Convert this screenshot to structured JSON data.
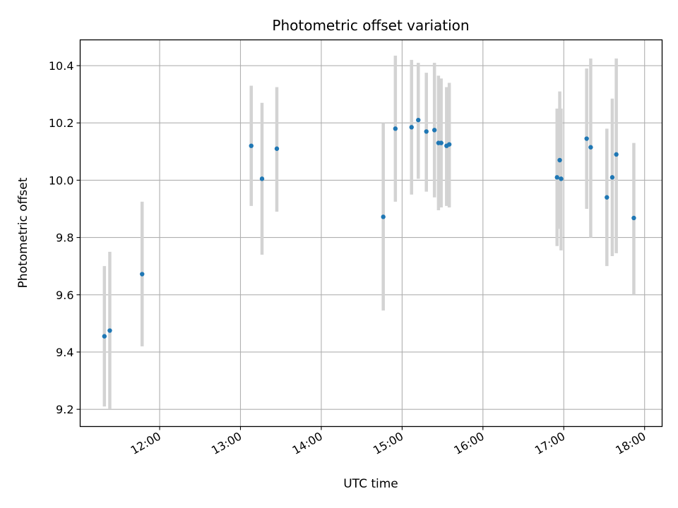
{
  "chart_data": {
    "type": "scatter",
    "title": "Photometric offset variation",
    "xlabel": "UTC time",
    "ylabel": "Photometric offset",
    "x_ticks": [
      "12:00",
      "13:00",
      "14:00",
      "15:00",
      "16:00",
      "17:00",
      "18:00"
    ],
    "y_ticks": [
      "9.2",
      "9.4",
      "9.6",
      "9.8",
      "10.0",
      "10.2",
      "10.4"
    ],
    "xlim": [
      "11:01",
      "18:13"
    ],
    "ylim": [
      9.14,
      10.49
    ],
    "grid": true,
    "colors": {
      "points": "#1f77b4",
      "errorbars": "#d3d3d3",
      "grid": "#b0b0b0"
    },
    "points": [
      {
        "time": "11:19",
        "offset": 9.455,
        "err_low": 9.21,
        "err_high": 9.7
      },
      {
        "time": "11:23",
        "offset": 9.475,
        "err_low": 9.2,
        "err_high": 9.75
      },
      {
        "time": "11:47",
        "offset": 9.672,
        "err_low": 9.42,
        "err_high": 9.925
      },
      {
        "time": "13:08",
        "offset": 10.12,
        "err_low": 9.91,
        "err_high": 10.33
      },
      {
        "time": "13:16",
        "offset": 10.005,
        "err_low": 9.74,
        "err_high": 10.27
      },
      {
        "time": "13:27",
        "offset": 10.11,
        "err_low": 9.89,
        "err_high": 10.325
      },
      {
        "time": "14:46",
        "offset": 9.872,
        "err_low": 9.545,
        "err_high": 10.2
      },
      {
        "time": "14:55",
        "offset": 10.18,
        "err_low": 9.925,
        "err_high": 10.435
      },
      {
        "time": "15:07",
        "offset": 10.185,
        "err_low": 9.95,
        "err_high": 10.42
      },
      {
        "time": "15:12",
        "offset": 10.21,
        "err_low": 10.005,
        "err_high": 10.41
      },
      {
        "time": "15:18",
        "offset": 10.17,
        "err_low": 9.96,
        "err_high": 10.375
      },
      {
        "time": "15:24",
        "offset": 10.175,
        "err_low": 9.94,
        "err_high": 10.41
      },
      {
        "time": "15:27",
        "offset": 10.13,
        "err_low": 9.895,
        "err_high": 10.365
      },
      {
        "time": "15:29",
        "offset": 10.13,
        "err_low": 9.905,
        "err_high": 10.355
      },
      {
        "time": "15:33",
        "offset": 10.12,
        "err_low": 9.91,
        "err_high": 10.325
      },
      {
        "time": "15:35",
        "offset": 10.125,
        "err_low": 9.905,
        "err_high": 10.34
      },
      {
        "time": "16:55",
        "offset": 10.01,
        "err_low": 9.77,
        "err_high": 10.25
      },
      {
        "time": "16:57",
        "offset": 10.07,
        "err_low": 9.83,
        "err_high": 10.31
      },
      {
        "time": "16:58",
        "offset": 10.005,
        "err_low": 9.755,
        "err_high": 10.25
      },
      {
        "time": "17:17",
        "offset": 10.145,
        "err_low": 9.9,
        "err_high": 10.39
      },
      {
        "time": "17:20",
        "offset": 10.115,
        "err_low": 9.8,
        "err_high": 10.425
      },
      {
        "time": "17:32",
        "offset": 9.94,
        "err_low": 9.7,
        "err_high": 10.18
      },
      {
        "time": "17:36",
        "offset": 10.01,
        "err_low": 9.735,
        "err_high": 10.285
      },
      {
        "time": "17:39",
        "offset": 10.09,
        "err_low": 9.745,
        "err_high": 10.425
      },
      {
        "time": "17:52",
        "offset": 9.868,
        "err_low": 9.6,
        "err_high": 10.13
      }
    ]
  }
}
